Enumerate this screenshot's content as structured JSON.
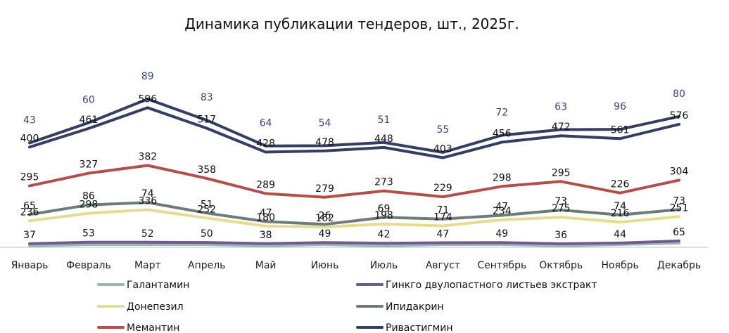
{
  "chart_data": {
    "type": "line",
    "title": "Динамика публикации тендеров, шт., 2025г.",
    "xlabel": "",
    "ylabel": "",
    "stacked": true,
    "legend_position": "bottom",
    "grid": false,
    "categories": [
      "Январь",
      "Февраль",
      "Март",
      "Апрель",
      "Май",
      "Июнь",
      "Июль",
      "Август",
      "Сентябрь",
      "Октябрь",
      "Ноябрь",
      "Декабрь"
    ],
    "series": [
      {
        "name": "Галантамин",
        "color": "#9ab7b4",
        "values": [
          null,
          null,
          null,
          null,
          null,
          null,
          null,
          null,
          null,
          null,
          null,
          null
        ]
      },
      {
        "name": "Гинкго двулопастного листьев экстракт",
        "color": "#6e5b91",
        "values": [
          37,
          53,
          52,
          50,
          38,
          49,
          42,
          47,
          49,
          36,
          44,
          65
        ]
      },
      {
        "name": "Донепезил",
        "color": "#e4dc8f",
        "values": [
          236,
          298,
          336,
          252,
          180,
          162,
          198,
          174,
          234,
          275,
          216,
          251
        ]
      },
      {
        "name": "Ипидакрин",
        "color": "#6d7c79",
        "values": [
          65,
          86,
          74,
          51,
          47,
          26,
          69,
          71,
          47,
          73,
          74,
          73
        ]
      },
      {
        "name": "Мемантин",
        "color": "#b24f4a",
        "values": [
          295,
          327,
          382,
          358,
          289,
          279,
          273,
          229,
          298,
          295,
          226,
          304
        ]
      },
      {
        "name": "Ривастигмин",
        "color": "#353d63",
        "values": [
          400,
          461,
          596,
          517,
          428,
          478,
          448,
          403,
          456,
          472,
          561,
          576
        ]
      },
      {
        "name": "",
        "color": "#353d63",
        "values": [
          43,
          60,
          89,
          83,
          64,
          54,
          51,
          55,
          72,
          63,
          96,
          80
        ]
      }
    ]
  }
}
